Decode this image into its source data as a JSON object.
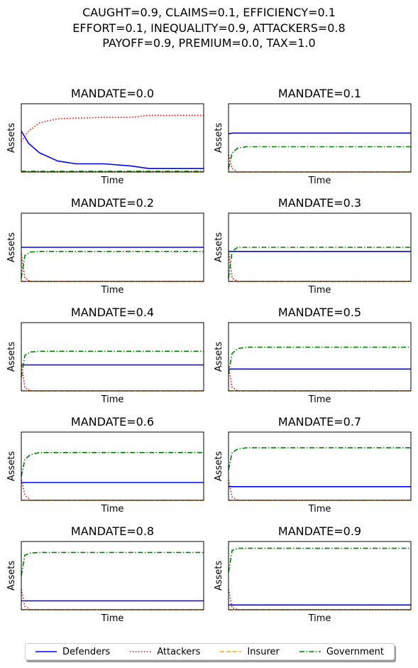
{
  "suptitle": {
    "line1": "CAUGHT=0.9, CLAIMS=0.1, EFFICIENCY=0.1",
    "line2": "EFFORT=0.1, INEQUALITY=0.9, ATTACKERS=0.8",
    "line3": "PAYOFF=0.9, PREMIUM=0.0, TAX=1.0"
  },
  "legend": {
    "placement": "bottom-center",
    "items": [
      {
        "label": "Defenders",
        "color": "#0000ff",
        "style": "solid"
      },
      {
        "label": "Attackers",
        "color": "#ff0000",
        "style": "dotted"
      },
      {
        "label": "Insurer",
        "color": "#ffa500",
        "style": "dashed"
      },
      {
        "label": "Government",
        "color": "#008000",
        "style": "dashdot"
      }
    ]
  },
  "chart_data": [
    {
      "type": "line",
      "title": "MANDATE=0.0",
      "xlabel": "Time",
      "ylabel": "Assets",
      "ylim": [
        0,
        1
      ],
      "grid": false,
      "x": [
        0,
        0.04,
        0.1,
        0.2,
        0.3,
        0.45,
        0.6,
        0.7,
        1.0
      ],
      "series": [
        {
          "name": "Defenders",
          "values": [
            0.6,
            0.42,
            0.28,
            0.16,
            0.12,
            0.12,
            0.09,
            0.05,
            0.05
          ]
        },
        {
          "name": "Attackers",
          "values": [
            0.45,
            0.6,
            0.72,
            0.78,
            0.79,
            0.8,
            0.8,
            0.83,
            0.83
          ]
        },
        {
          "name": "Insurer",
          "values": [
            0,
            0,
            0,
            0,
            0,
            0,
            0,
            0,
            0
          ]
        },
        {
          "name": "Government",
          "values": [
            0.01,
            0.01,
            0.01,
            0.01,
            0.01,
            0.01,
            0.01,
            0.01,
            0.01
          ]
        }
      ]
    },
    {
      "type": "line",
      "title": "MANDATE=0.1",
      "xlabel": "Time",
      "ylabel": "Assets",
      "ylim": [
        0,
        1
      ],
      "grid": false,
      "x": [
        0,
        0.02,
        0.05,
        0.1,
        1.0
      ],
      "series": [
        {
          "name": "Defenders",
          "values": [
            0.56,
            0.57,
            0.57,
            0.57,
            0.57
          ]
        },
        {
          "name": "Attackers",
          "values": [
            0.25,
            0.05,
            0,
            0,
            0
          ]
        },
        {
          "name": "Insurer",
          "values": [
            0,
            0,
            0,
            0,
            0
          ]
        },
        {
          "name": "Government",
          "values": [
            0.05,
            0.28,
            0.35,
            0.37,
            0.37
          ]
        }
      ]
    },
    {
      "type": "line",
      "title": "MANDATE=0.2",
      "xlabel": "Time",
      "ylabel": "Assets",
      "ylim": [
        0,
        1
      ],
      "grid": false,
      "x": [
        0,
        0.02,
        0.05,
        0.1,
        1.0
      ],
      "series": [
        {
          "name": "Defenders",
          "values": [
            0.5,
            0.5,
            0.5,
            0.5,
            0.5
          ]
        },
        {
          "name": "Attackers",
          "values": [
            0.4,
            0.05,
            0,
            0,
            0
          ]
        },
        {
          "name": "Insurer",
          "values": [
            0,
            0,
            0,
            0,
            0
          ]
        },
        {
          "name": "Government",
          "values": [
            0.05,
            0.38,
            0.43,
            0.44,
            0.44
          ]
        }
      ]
    },
    {
      "type": "line",
      "title": "MANDATE=0.3",
      "xlabel": "Time",
      "ylabel": "Assets",
      "ylim": [
        0,
        1
      ],
      "grid": false,
      "x": [
        0,
        0.02,
        0.05,
        0.1,
        1.0
      ],
      "series": [
        {
          "name": "Defenders",
          "values": [
            0.44,
            0.44,
            0.44,
            0.44,
            0.44
          ]
        },
        {
          "name": "Attackers",
          "values": [
            0.45,
            0.05,
            0,
            0,
            0
          ]
        },
        {
          "name": "Insurer",
          "values": [
            0,
            0,
            0,
            0,
            0
          ]
        },
        {
          "name": "Government",
          "values": [
            0.05,
            0.44,
            0.5,
            0.5,
            0.5
          ]
        }
      ]
    },
    {
      "type": "line",
      "title": "MANDATE=0.4",
      "xlabel": "Time",
      "ylabel": "Assets",
      "ylim": [
        0,
        1
      ],
      "grid": false,
      "x": [
        0,
        0.02,
        0.05,
        0.1,
        1.0
      ],
      "series": [
        {
          "name": "Defenders",
          "values": [
            0.38,
            0.38,
            0.38,
            0.38,
            0.38
          ]
        },
        {
          "name": "Attackers",
          "values": [
            0.4,
            0.05,
            0,
            0,
            0
          ]
        },
        {
          "name": "Insurer",
          "values": [
            0,
            0,
            0,
            0,
            0
          ]
        },
        {
          "name": "Government",
          "values": [
            0.2,
            0.52,
            0.57,
            0.58,
            0.58
          ]
        }
      ]
    },
    {
      "type": "line",
      "title": "MANDATE=0.5",
      "xlabel": "Time",
      "ylabel": "Assets",
      "ylim": [
        0,
        1
      ],
      "grid": false,
      "x": [
        0,
        0.02,
        0.05,
        0.1,
        1.0
      ],
      "series": [
        {
          "name": "Defenders",
          "values": [
            0.32,
            0.32,
            0.32,
            0.32,
            0.32
          ]
        },
        {
          "name": "Attackers",
          "values": [
            0.35,
            0.05,
            0,
            0,
            0
          ]
        },
        {
          "name": "Insurer",
          "values": [
            0,
            0,
            0,
            0,
            0
          ]
        },
        {
          "name": "Government",
          "values": [
            0.25,
            0.55,
            0.62,
            0.64,
            0.64
          ]
        }
      ]
    },
    {
      "type": "line",
      "title": "MANDATE=0.6",
      "xlabel": "Time",
      "ylabel": "Assets",
      "ylim": [
        0,
        1
      ],
      "grid": false,
      "x": [
        0,
        0.02,
        0.05,
        0.1,
        1.0
      ],
      "series": [
        {
          "name": "Defenders",
          "values": [
            0.26,
            0.26,
            0.26,
            0.26,
            0.26
          ]
        },
        {
          "name": "Attackers",
          "values": [
            0.3,
            0.08,
            0,
            0,
            0
          ]
        },
        {
          "name": "Insurer",
          "values": [
            0,
            0,
            0,
            0,
            0
          ]
        },
        {
          "name": "Government",
          "values": [
            0.35,
            0.6,
            0.67,
            0.7,
            0.7
          ]
        }
      ]
    },
    {
      "type": "line",
      "title": "MANDATE=0.7",
      "xlabel": "Time",
      "ylabel": "Assets",
      "ylim": [
        0,
        1
      ],
      "grid": false,
      "x": [
        0,
        0.02,
        0.05,
        0.1,
        1.0
      ],
      "series": [
        {
          "name": "Defenders",
          "values": [
            0.2,
            0.2,
            0.2,
            0.2,
            0.2
          ]
        },
        {
          "name": "Attackers",
          "values": [
            0.3,
            0.05,
            0,
            0,
            0
          ]
        },
        {
          "name": "Insurer",
          "values": [
            0,
            0,
            0,
            0,
            0
          ]
        },
        {
          "name": "Government",
          "values": [
            0.45,
            0.7,
            0.75,
            0.77,
            0.77
          ]
        }
      ]
    },
    {
      "type": "line",
      "title": "MANDATE=0.8",
      "xlabel": "Time",
      "ylabel": "Assets",
      "ylim": [
        0,
        1
      ],
      "grid": false,
      "x": [
        0,
        0.02,
        0.05,
        0.1,
        1.0
      ],
      "series": [
        {
          "name": "Defenders",
          "values": [
            0.13,
            0.13,
            0.13,
            0.13,
            0.13
          ]
        },
        {
          "name": "Attackers",
          "values": [
            0.3,
            0.05,
            0,
            0,
            0
          ]
        },
        {
          "name": "Insurer",
          "values": [
            0,
            0,
            0,
            0,
            0
          ]
        },
        {
          "name": "Government",
          "values": [
            0.5,
            0.8,
            0.83,
            0.84,
            0.84
          ]
        }
      ]
    },
    {
      "type": "line",
      "title": "MANDATE=0.9",
      "xlabel": "Time",
      "ylabel": "Assets",
      "ylim": [
        0,
        1
      ],
      "grid": false,
      "x": [
        0,
        0.02,
        0.05,
        0.1,
        1.0
      ],
      "series": [
        {
          "name": "Defenders",
          "values": [
            0.07,
            0.07,
            0.07,
            0.07,
            0.07
          ]
        },
        {
          "name": "Attackers",
          "values": [
            0.3,
            0.03,
            0,
            0,
            0
          ]
        },
        {
          "name": "Insurer",
          "values": [
            0,
            0,
            0,
            0,
            0
          ]
        },
        {
          "name": "Government",
          "values": [
            0.55,
            0.87,
            0.9,
            0.9,
            0.9
          ]
        }
      ]
    }
  ]
}
